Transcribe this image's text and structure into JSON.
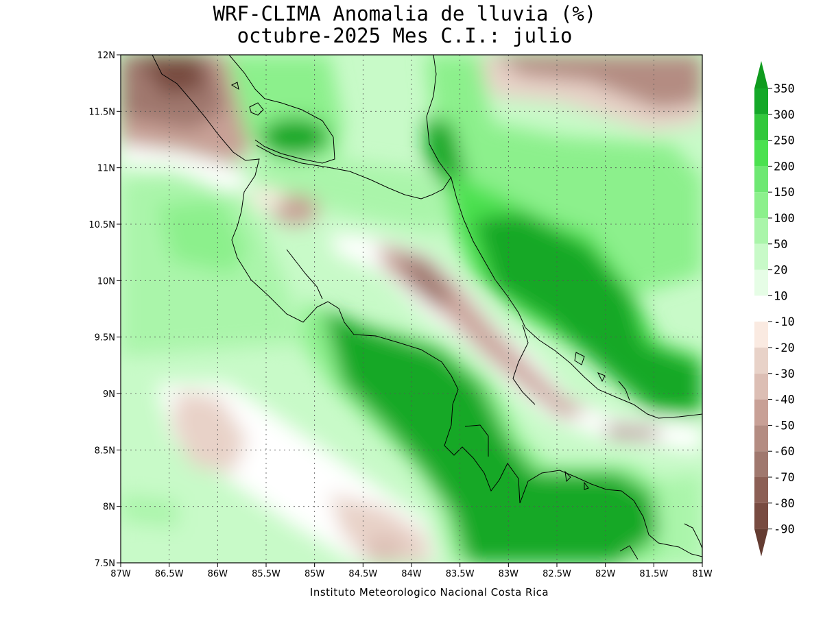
{
  "title": {
    "line1": "WRF-CLIMA Anomalia de lluvia (%)",
    "line2": "octubre-2025 Mes C.I.: julio"
  },
  "credit": "Instituto Meteorologico Nacional Costa Rica",
  "map": {
    "lon_range": [
      -87,
      -81
    ],
    "lat_range": [
      7.5,
      12
    ],
    "x_ticks": [
      {
        "value": -87,
        "label": "87W"
      },
      {
        "value": -86.5,
        "label": "86.5W"
      },
      {
        "value": -86,
        "label": "86W"
      },
      {
        "value": -85.5,
        "label": "85.5W"
      },
      {
        "value": -85,
        "label": "85W"
      },
      {
        "value": -84.5,
        "label": "84.5W"
      },
      {
        "value": -84,
        "label": "84W"
      },
      {
        "value": -83.5,
        "label": "83.5W"
      },
      {
        "value": -83,
        "label": "83W"
      },
      {
        "value": -82.5,
        "label": "82.5W"
      },
      {
        "value": -82,
        "label": "82W"
      },
      {
        "value": -81.5,
        "label": "81.5W"
      },
      {
        "value": -81,
        "label": "81W"
      }
    ],
    "y_ticks": [
      {
        "value": 12,
        "label": "12N"
      },
      {
        "value": 11.5,
        "label": "11.5N"
      },
      {
        "value": 11,
        "label": "11N"
      },
      {
        "value": 10.5,
        "label": "10.5N"
      },
      {
        "value": 10,
        "label": "10N"
      },
      {
        "value": 9.5,
        "label": "9.5N"
      },
      {
        "value": 9,
        "label": "9N"
      },
      {
        "value": 8.5,
        "label": "8.5N"
      },
      {
        "value": 8,
        "label": "8N"
      },
      {
        "value": 7.5,
        "label": "7.5N"
      }
    ],
    "grid": true
  },
  "legend": {
    "placement": "right",
    "label_list": [
      "350",
      "300",
      "250",
      "200",
      "150",
      "100",
      "50",
      "20",
      "10",
      "-10",
      "-20",
      "-30",
      "-40",
      "-50",
      "-60",
      "-70",
      "-80",
      "-90"
    ],
    "colors_top_to_bottom": [
      "#0f9b1e",
      "#14a828",
      "#32c83c",
      "#4be150",
      "#6ee873",
      "#8cf08c",
      "#aaf5aa",
      "#c8fac8",
      "#e6fde6",
      "#ffffff",
      "#faeae1",
      "#e8d2c8",
      "#dcbeb4",
      "#c8a096",
      "#b48c82",
      "#a0786e",
      "#8c5f55",
      "#784b41",
      "#643c32"
    ]
  },
  "chart_data": {
    "type": "heatmap",
    "variable": "Anomalia de lluvia (%)",
    "xlim": [
      -87,
      -81
    ],
    "ylim": [
      7.5,
      12
    ],
    "levels": [
      -90,
      -80,
      -70,
      -60,
      -50,
      -40,
      -30,
      -20,
      -10,
      10,
      20,
      50,
      100,
      150,
      200,
      250,
      300,
      350
    ],
    "colors": [
      "#643c32",
      "#784b41",
      "#8c5f55",
      "#a0786e",
      "#b48c82",
      "#c8a096",
      "#dcbeb4",
      "#e8d2c8",
      "#faeae1",
      "#ffffff",
      "#e6fde6",
      "#c8fac8",
      "#aaf5aa",
      "#8cf08c",
      "#6ee873",
      "#4be150",
      "#32c83c",
      "#14a828",
      "#0f9b1e"
    ]
  }
}
